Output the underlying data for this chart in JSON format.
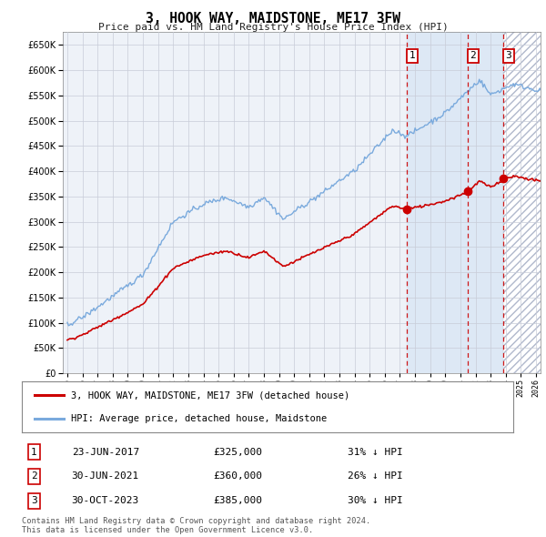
{
  "title": "3, HOOK WAY, MAIDSTONE, ME17 3FW",
  "subtitle": "Price paid vs. HM Land Registry's House Price Index (HPI)",
  "ylim": [
    0,
    675000
  ],
  "yticks": [
    0,
    50000,
    100000,
    150000,
    200000,
    250000,
    300000,
    350000,
    400000,
    450000,
    500000,
    550000,
    600000,
    650000
  ],
  "background_color": "#ffffff",
  "plot_bg_color": "#eef2f8",
  "grid_color": "#c8ccd8",
  "hpi_color": "#7aaadd",
  "price_color": "#cc0000",
  "shade_color": "#dde8f5",
  "hatch_color": "#d0d8e8",
  "transactions": [
    {
      "num": 1,
      "date": "23-JUN-2017",
      "price": 325000,
      "hpi_pct": "31% ↓ HPI",
      "year": 2017.46
    },
    {
      "num": 2,
      "date": "30-JUN-2021",
      "price": 360000,
      "hpi_pct": "26% ↓ HPI",
      "year": 2021.49
    },
    {
      "num": 3,
      "date": "30-OCT-2023",
      "price": 385000,
      "hpi_pct": "30% ↓ HPI",
      "year": 2023.83
    }
  ],
  "footer": "Contains HM Land Registry data © Crown copyright and database right 2024.\nThis data is licensed under the Open Government Licence v3.0.",
  "legend_property": "3, HOOK WAY, MAIDSTONE, ME17 3FW (detached house)",
  "legend_hpi": "HPI: Average price, detached house, Maidstone",
  "xmin": 1995,
  "xmax": 2026
}
